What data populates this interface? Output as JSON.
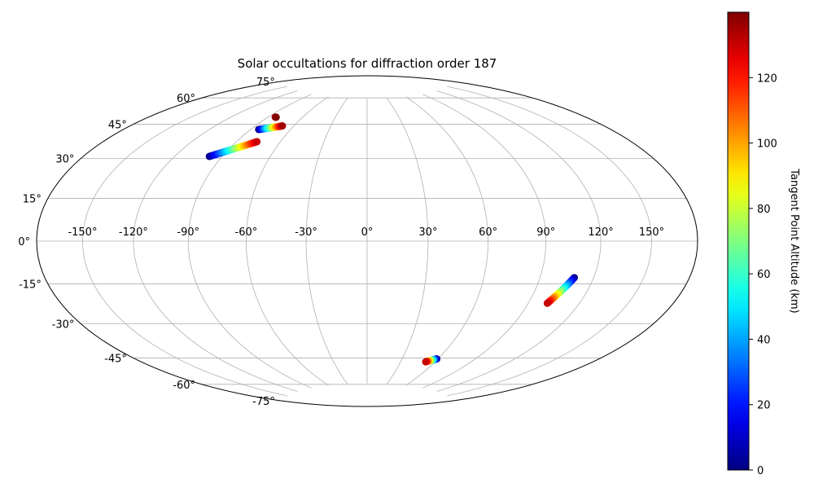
{
  "chart_data": {
    "type": "scatter",
    "projection": "hammer-aitoff",
    "title": "Solar occultations for diffraction order 187",
    "grid": true,
    "lon_range": [
      -180,
      180
    ],
    "lat_range": [
      -75,
      75
    ],
    "lon_ticks": [
      -150,
      -120,
      -90,
      -60,
      -30,
      0,
      30,
      60,
      90,
      120,
      150
    ],
    "lat_ticks": [
      -75,
      -60,
      -45,
      -30,
      -15,
      0,
      15,
      30,
      45,
      60,
      75
    ],
    "lon_tick_labels": [
      "-150°",
      "-120°",
      "-90°",
      "-60°",
      "-30°",
      "0°",
      "30°",
      "60°",
      "90°",
      "120°",
      "150°"
    ],
    "lat_tick_labels": [
      "-75°",
      "-60°",
      "-45°",
      "-30°",
      "-15°",
      "0°",
      "15°",
      "30°",
      "45°",
      "60°",
      "75°"
    ],
    "colorbar": {
      "label": "Tangent Point Altitude (km)",
      "colormap": "jet",
      "range": [
        0,
        140
      ],
      "ticks": [
        0,
        20,
        40,
        60,
        80,
        100,
        120
      ],
      "tick_labels": [
        "0",
        "20",
        "40",
        "60",
        "80",
        "100",
        "120"
      ]
    },
    "series": [
      {
        "lon_start": -98,
        "lat_start": 39,
        "lon_end": -76,
        "lat_end": 48,
        "alt_start": 0,
        "alt_end": 130,
        "n": 40
      },
      {
        "lon_start": -84,
        "lat_start": 54,
        "lon_end": -69,
        "lat_end": 57,
        "alt_start": 0,
        "alt_end": 135,
        "n": 28
      },
      {
        "lon_start": -84,
        "lat_start": 61,
        "lon_end": -83,
        "lat_end": 61,
        "alt_start": 130,
        "alt_end": 140,
        "n": 4
      },
      {
        "lon_start": 109,
        "lat_start": -16,
        "lon_end": 101,
        "lat_end": -28,
        "alt_start": 0,
        "alt_end": 130,
        "n": 40
      },
      {
        "lon_start": 59,
        "lat_start": -59,
        "lon_end": 52,
        "lat_end": -61,
        "alt_start": 0,
        "alt_end": 130,
        "n": 20
      }
    ]
  }
}
